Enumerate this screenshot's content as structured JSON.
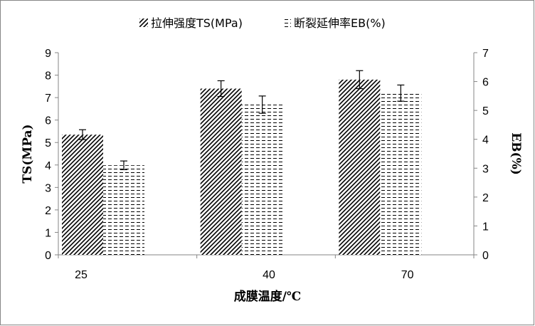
{
  "chart_data": {
    "type": "bar",
    "categories": [
      "25",
      "40",
      "70"
    ],
    "xlabel": "成膜温度/℃",
    "series": [
      {
        "name": "拉伸强度TS(MPa)",
        "axis": "left",
        "pattern": "diagonal-hatch",
        "values": [
          5.35,
          7.4,
          7.8
        ],
        "errors": [
          0.22,
          0.35,
          0.4
        ]
      },
      {
        "name": "断裂延伸率EB(%)",
        "axis": "right",
        "pattern": "dashed-horizontal",
        "values": [
          3.1,
          5.2,
          5.6
        ],
        "errors": [
          0.15,
          0.3,
          0.28
        ]
      }
    ],
    "y_left": {
      "label": "TS(MPa)",
      "range": [
        0,
        9
      ],
      "ticks": [
        "0",
        "1",
        "2",
        "3",
        "4",
        "5",
        "6",
        "7",
        "8",
        "9"
      ]
    },
    "y_right": {
      "label": "EB(%)",
      "range": [
        0,
        7
      ],
      "ticks": [
        "0",
        "1",
        "2",
        "3",
        "4",
        "5",
        "6",
        "7"
      ]
    },
    "grid": false,
    "legend": "top",
    "colors": {
      "ink": "#000000",
      "frame": "#868686",
      "background": "#ffffff"
    }
  }
}
